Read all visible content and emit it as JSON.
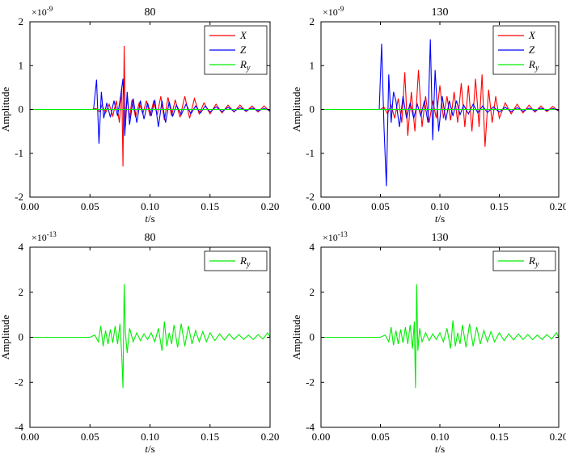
{
  "figure": {
    "panel_count": 4
  },
  "colors": {
    "X": "#ff0000",
    "Z": "#0000ff",
    "Ry": "#00ee00",
    "axis": "#000000"
  },
  "chart_data": [
    {
      "type": "line",
      "title": "80",
      "multiplier": "×10",
      "multiplier_exp": "-9",
      "xlabel_italic": "t",
      "xlabel_unit": "/s",
      "ylabel": "Amplitude",
      "xlim": [
        0,
        0.2
      ],
      "ylim": [
        -2,
        2
      ],
      "xticks": [
        "0.00",
        "0.05",
        "0.10",
        "0.15",
        "0.20"
      ],
      "yticks": [
        "-2",
        "-1",
        "0",
        "1",
        "2"
      ],
      "legend_position": "top-right",
      "series": [
        {
          "name": "X",
          "color": "#ff0000",
          "x": [
            0,
            0.052,
            0.055,
            0.058,
            0.06,
            0.063,
            0.066,
            0.069,
            0.072,
            0.0745,
            0.0765,
            0.0775,
            0.0785,
            0.0795,
            0.081,
            0.083,
            0.085,
            0.088,
            0.091,
            0.094,
            0.097,
            0.1,
            0.103,
            0.106,
            0.109,
            0.112,
            0.115,
            0.118,
            0.121,
            0.125,
            0.129,
            0.133,
            0.137,
            0.141,
            0.145,
            0.15,
            0.155,
            0.16,
            0.165,
            0.17,
            0.175,
            0.18,
            0.185,
            0.19,
            0.195,
            0.2
          ],
          "y": [
            0,
            0,
            0.02,
            -0.05,
            0.1,
            -0.08,
            0.12,
            -0.15,
            0.2,
            -0.3,
            0.5,
            -1.3,
            1.45,
            -0.4,
            0.3,
            -0.2,
            0.22,
            -0.18,
            0.15,
            -0.1,
            0.2,
            -0.15,
            0.18,
            -0.12,
            0.3,
            -0.25,
            0.28,
            -0.15,
            0.22,
            -0.18,
            0.3,
            -0.2,
            0.25,
            -0.1,
            0.15,
            -0.1,
            0.12,
            -0.08,
            0.1,
            -0.06,
            0.1,
            -0.05,
            0.08,
            -0.06,
            0.08,
            -0.05
          ]
        },
        {
          "name": "Z",
          "color": "#0000ff",
          "x": [
            0,
            0.053,
            0.0555,
            0.0575,
            0.0595,
            0.0615,
            0.064,
            0.067,
            0.07,
            0.073,
            0.0755,
            0.0775,
            0.079,
            0.081,
            0.083,
            0.086,
            0.089,
            0.092,
            0.095,
            0.098,
            0.101,
            0.104,
            0.107,
            0.11,
            0.113,
            0.116,
            0.119,
            0.122,
            0.126,
            0.13,
            0.134,
            0.138,
            0.142,
            0.146,
            0.15,
            0.155,
            0.16,
            0.165,
            0.17,
            0.175,
            0.18,
            0.185,
            0.19,
            0.195,
            0.2
          ],
          "y": [
            0,
            0,
            0.68,
            -0.78,
            0.4,
            -0.2,
            0.15,
            -0.18,
            0.2,
            -0.15,
            0.3,
            0.7,
            -0.6,
            0.4,
            -0.35,
            0.25,
            -0.3,
            0.2,
            -0.22,
            0.15,
            -0.15,
            0.22,
            -0.4,
            0.2,
            -0.3,
            0.18,
            -0.15,
            0.1,
            -0.12,
            0.12,
            -0.1,
            0.08,
            -0.08,
            0.08,
            -0.06,
            0.06,
            -0.05,
            0.05,
            -0.04,
            0.04,
            -0.03,
            0.03,
            -0.03,
            0.02,
            -0.02
          ]
        },
        {
          "name": "R",
          "name_sub": "y",
          "color": "#00ee00",
          "x": [
            0,
            0.2
          ],
          "y": [
            0,
            0
          ]
        }
      ]
    },
    {
      "type": "line",
      "title": "130",
      "multiplier": "×10",
      "multiplier_exp": "-9",
      "xlabel_italic": "t",
      "xlabel_unit": "/s",
      "ylabel": "Amplitude",
      "xlim": [
        0,
        0.2
      ],
      "ylim": [
        -2,
        2
      ],
      "xticks": [
        "0.00",
        "0.05",
        "0.10",
        "0.15",
        "0.20"
      ],
      "yticks": [
        "-2",
        "-1",
        "0",
        "1",
        "2"
      ],
      "legend_position": "top-right",
      "series": [
        {
          "name": "X",
          "color": "#ff0000",
          "x": [
            0,
            0.05,
            0.053,
            0.056,
            0.059,
            0.062,
            0.065,
            0.068,
            0.0705,
            0.073,
            0.076,
            0.079,
            0.082,
            0.085,
            0.088,
            0.091,
            0.094,
            0.097,
            0.1,
            0.103,
            0.106,
            0.109,
            0.112,
            0.115,
            0.118,
            0.121,
            0.124,
            0.127,
            0.13,
            0.133,
            0.1355,
            0.138,
            0.141,
            0.144,
            0.147,
            0.15,
            0.155,
            0.16,
            0.165,
            0.17,
            0.175,
            0.18,
            0.185,
            0.19,
            0.195,
            0.2
          ],
          "y": [
            0,
            0,
            0.05,
            -0.1,
            0.1,
            -0.2,
            0.25,
            -0.3,
            0.85,
            -0.6,
            0.4,
            -0.5,
            0.9,
            -0.4,
            0.3,
            -0.3,
            0.2,
            -0.2,
            0.55,
            -0.2,
            0.3,
            -0.25,
            0.4,
            -0.3,
            0.6,
            -0.4,
            0.55,
            -0.5,
            0.7,
            -0.4,
            0.8,
            -0.85,
            0.45,
            -0.3,
            0.3,
            -0.2,
            0.15,
            -0.1,
            0.12,
            -0.08,
            0.1,
            -0.06,
            0.08,
            -0.05,
            0.07,
            -0.04
          ]
        },
        {
          "name": "Z",
          "color": "#0000ff",
          "x": [
            0,
            0.049,
            0.051,
            0.053,
            0.055,
            0.057,
            0.059,
            0.061,
            0.063,
            0.066,
            0.069,
            0.072,
            0.075,
            0.078,
            0.081,
            0.084,
            0.087,
            0.09,
            0.092,
            0.094,
            0.096,
            0.099,
            0.102,
            0.105,
            0.108,
            0.111,
            0.114,
            0.117,
            0.12,
            0.124,
            0.128,
            0.132,
            0.136,
            0.14,
            0.145,
            0.15,
            0.155,
            0.16,
            0.165,
            0.17,
            0.175,
            0.18,
            0.185,
            0.19,
            0.195,
            0.2
          ],
          "y": [
            0,
            0,
            1.5,
            -0.4,
            -1.75,
            0.8,
            -0.3,
            0.4,
            0.2,
            -0.4,
            0.3,
            -0.2,
            0.15,
            -0.2,
            0.12,
            -0.15,
            0.2,
            -0.3,
            1.6,
            -0.7,
            0.9,
            -0.5,
            0.3,
            -0.25,
            0.2,
            -0.15,
            0.2,
            -0.12,
            0.1,
            -0.1,
            0.12,
            -0.08,
            0.08,
            -0.07,
            0.06,
            -0.06,
            0.05,
            -0.05,
            0.04,
            -0.04,
            0.03,
            -0.03,
            0.03,
            -0.02,
            0.02,
            -0.02
          ]
        },
        {
          "name": "R",
          "name_sub": "y",
          "color": "#00ee00",
          "x": [
            0,
            0.2
          ],
          "y": [
            0,
            0
          ]
        }
      ]
    },
    {
      "type": "line",
      "title": "80",
      "multiplier": "×10",
      "multiplier_exp": "-13",
      "xlabel_italic": "t",
      "xlabel_unit": "/s",
      "ylabel": "Amplitude",
      "xlim": [
        0,
        0.2
      ],
      "ylim": [
        -4,
        4
      ],
      "xticks": [
        "0.00",
        "0.05",
        "0.10",
        "0.15",
        "0.20"
      ],
      "yticks": [
        "-4",
        "-2",
        "0",
        "2",
        "4"
      ],
      "legend_position": "top-right",
      "series": [
        {
          "name": "R",
          "name_sub": "y",
          "color": "#00ee00",
          "x": [
            0,
            0.05,
            0.054,
            0.057,
            0.059,
            0.061,
            0.063,
            0.065,
            0.067,
            0.069,
            0.071,
            0.073,
            0.075,
            0.0765,
            0.0775,
            0.0785,
            0.0795,
            0.081,
            0.083,
            0.086,
            0.089,
            0.092,
            0.095,
            0.098,
            0.101,
            0.104,
            0.107,
            0.11,
            0.112,
            0.114,
            0.116,
            0.118,
            0.12,
            0.123,
            0.126,
            0.129,
            0.132,
            0.135,
            0.138,
            0.141,
            0.144,
            0.147,
            0.15,
            0.154,
            0.158,
            0.162,
            0.166,
            0.17,
            0.174,
            0.178,
            0.182,
            0.186,
            0.19,
            0.194,
            0.198,
            0.2
          ],
          "y": [
            0,
            0,
            0.1,
            -0.2,
            0.5,
            -0.4,
            0.3,
            -0.3,
            0.35,
            -0.25,
            0.5,
            -0.3,
            0.6,
            -0.8,
            -2.25,
            2.35,
            0.2,
            -0.7,
            0.4,
            -0.2,
            0.2,
            -0.15,
            0.15,
            -0.1,
            0.2,
            -0.2,
            0.4,
            -0.6,
            0.7,
            -0.4,
            0.2,
            -0.3,
            0.55,
            -0.45,
            0.6,
            -0.4,
            0.5,
            -0.3,
            0.3,
            -0.2,
            0.25,
            -0.2,
            0.2,
            -0.15,
            0.15,
            -0.12,
            0.15,
            -0.1,
            0.12,
            -0.1,
            0.1,
            -0.1,
            0.12,
            -0.08,
            0.2,
            0
          ]
        }
      ]
    },
    {
      "type": "line",
      "title": "130",
      "multiplier": "×10",
      "multiplier_exp": "-13",
      "xlabel_italic": "t",
      "xlabel_unit": "/s",
      "ylabel": "Amplitude",
      "xlim": [
        0,
        0.2
      ],
      "ylim": [
        -4,
        4
      ],
      "xticks": [
        "0.00",
        "0.05",
        "0.10",
        "0.15",
        "0.20"
      ],
      "yticks": [
        "-4",
        "-2",
        "0",
        "2",
        "4"
      ],
      "legend_position": "top-right",
      "series": [
        {
          "name": "R",
          "name_sub": "y",
          "color": "#00ee00",
          "x": [
            0,
            0.05,
            0.054,
            0.057,
            0.059,
            0.061,
            0.063,
            0.065,
            0.067,
            0.069,
            0.071,
            0.073,
            0.075,
            0.077,
            0.0785,
            0.0795,
            0.0805,
            0.0815,
            0.083,
            0.085,
            0.088,
            0.091,
            0.094,
            0.097,
            0.1,
            0.103,
            0.106,
            0.109,
            0.111,
            0.113,
            0.115,
            0.117,
            0.119,
            0.122,
            0.125,
            0.128,
            0.131,
            0.134,
            0.137,
            0.14,
            0.143,
            0.146,
            0.15,
            0.154,
            0.158,
            0.162,
            0.166,
            0.17,
            0.174,
            0.178,
            0.182,
            0.186,
            0.19,
            0.194,
            0.198,
            0.2
          ],
          "y": [
            0,
            0,
            0.1,
            -0.2,
            0.45,
            -0.35,
            0.3,
            -0.3,
            0.35,
            -0.25,
            0.45,
            -0.3,
            0.55,
            -0.5,
            0.7,
            -2.25,
            2.35,
            -0.6,
            0.4,
            -0.2,
            0.2,
            -0.15,
            0.15,
            -0.1,
            0.2,
            -0.2,
            0.4,
            -0.5,
            0.75,
            -0.4,
            0.2,
            -0.3,
            0.55,
            -0.45,
            0.6,
            -0.4,
            0.45,
            -0.3,
            0.3,
            -0.2,
            0.25,
            -0.2,
            0.2,
            -0.15,
            0.15,
            -0.12,
            0.15,
            -0.1,
            0.12,
            -0.1,
            0.1,
            -0.1,
            0.12,
            -0.08,
            0.2,
            0
          ]
        }
      ]
    }
  ]
}
